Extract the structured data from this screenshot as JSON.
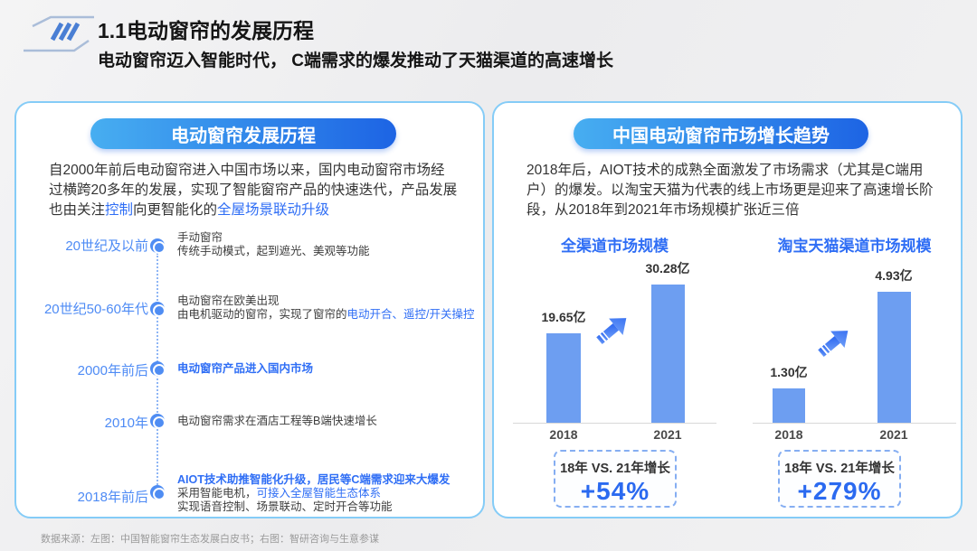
{
  "header": {
    "title": "1.1电动窗帘的发展历程",
    "subtitle": "电动窗帘迈入智能时代， C端需求的爆发推动了天猫渠道的高速增长"
  },
  "left_panel": {
    "badge": "电动窗帘发展历程",
    "intro": {
      "s1": "自2000年前后电动窗帘进入中国市场以来，国内电动窗帘市场经过横跨20多年的发展，实现了智能窗帘产品的快速迭代，产品发展也由关注",
      "s2": "控制",
      "s3": "向更智能化的",
      "s4": "全屋场景联动升级"
    },
    "timeline": [
      {
        "period": "20世纪及以前",
        "line1": "手动窗帘",
        "line2": "传统手动模式，起到遮光、美观等功能"
      },
      {
        "period": "20世纪50-60年代",
        "line1": "电动窗帘在欧美出现",
        "line2": "由电机驱动的窗帘，实现了窗帘的",
        "line2_highlight": "电动开合、遥控/开关操控"
      },
      {
        "period": "2000年前后",
        "line1_highlight": "电动窗帘产品进入国内市场"
      },
      {
        "period": "2010年",
        "line1": "电动窗帘需求在酒店工程等B端快速增长"
      },
      {
        "period": "2018年前后",
        "line1_highlight": "AIOT技术助推智能化升级，居民等C端需求迎来大爆发",
        "line2": "采用智能电机，",
        "line2_highlight": "可接入全屋智能生态体系",
        "line3": "实现语音控制、场景联动、定时开合等功能"
      }
    ]
  },
  "right_panel": {
    "badge": "中国电动窗帘市场增长趋势",
    "intro": "2018年后，AIOT技术的成熟全面激发了市场需求（尤其是C端用户）的爆发。以淘宝天猫为代表的线上市场更是迎来了高速增长阶段，从2018年到2021年市场规模扩张近三倍",
    "growth_boxes": [
      {
        "label": "18年 VS. 21年增长",
        "value": "+54%"
      },
      {
        "label": "18年 VS. 21年增长",
        "value": "+279%"
      }
    ]
  },
  "chart_data": [
    {
      "type": "bar",
      "title": "全渠道市场规模",
      "categories": [
        "2018",
        "2021"
      ],
      "values": [
        19.65,
        30.28
      ],
      "labels": [
        "19.65亿",
        "30.28亿"
      ],
      "unit": "亿",
      "ylim": [
        0,
        31
      ],
      "grid": false,
      "bar_color": "#6d9ef1"
    },
    {
      "type": "bar",
      "title": "淘宝天猫渠道市场规模",
      "categories": [
        "2018",
        "2021"
      ],
      "values": [
        1.3,
        4.93
      ],
      "labels": [
        "1.30亿",
        "4.93亿"
      ],
      "unit": "亿",
      "ylim": [
        0,
        5
      ],
      "grid": false,
      "bar_color": "#6d9ef1"
    }
  ],
  "footer": {
    "source": "数据来源：左图：中国智能窗帘生态发展白皮书；右图：智研咨询与生意参谋"
  },
  "colors": {
    "accent_blue": "#2f6ef5",
    "period_blue": "#4e8bf5",
    "bar_blue": "#6d9ef1",
    "pill_gradient_start": "#47aef1",
    "pill_gradient_end": "#1d64e4",
    "card_border": "#85ccf7"
  }
}
